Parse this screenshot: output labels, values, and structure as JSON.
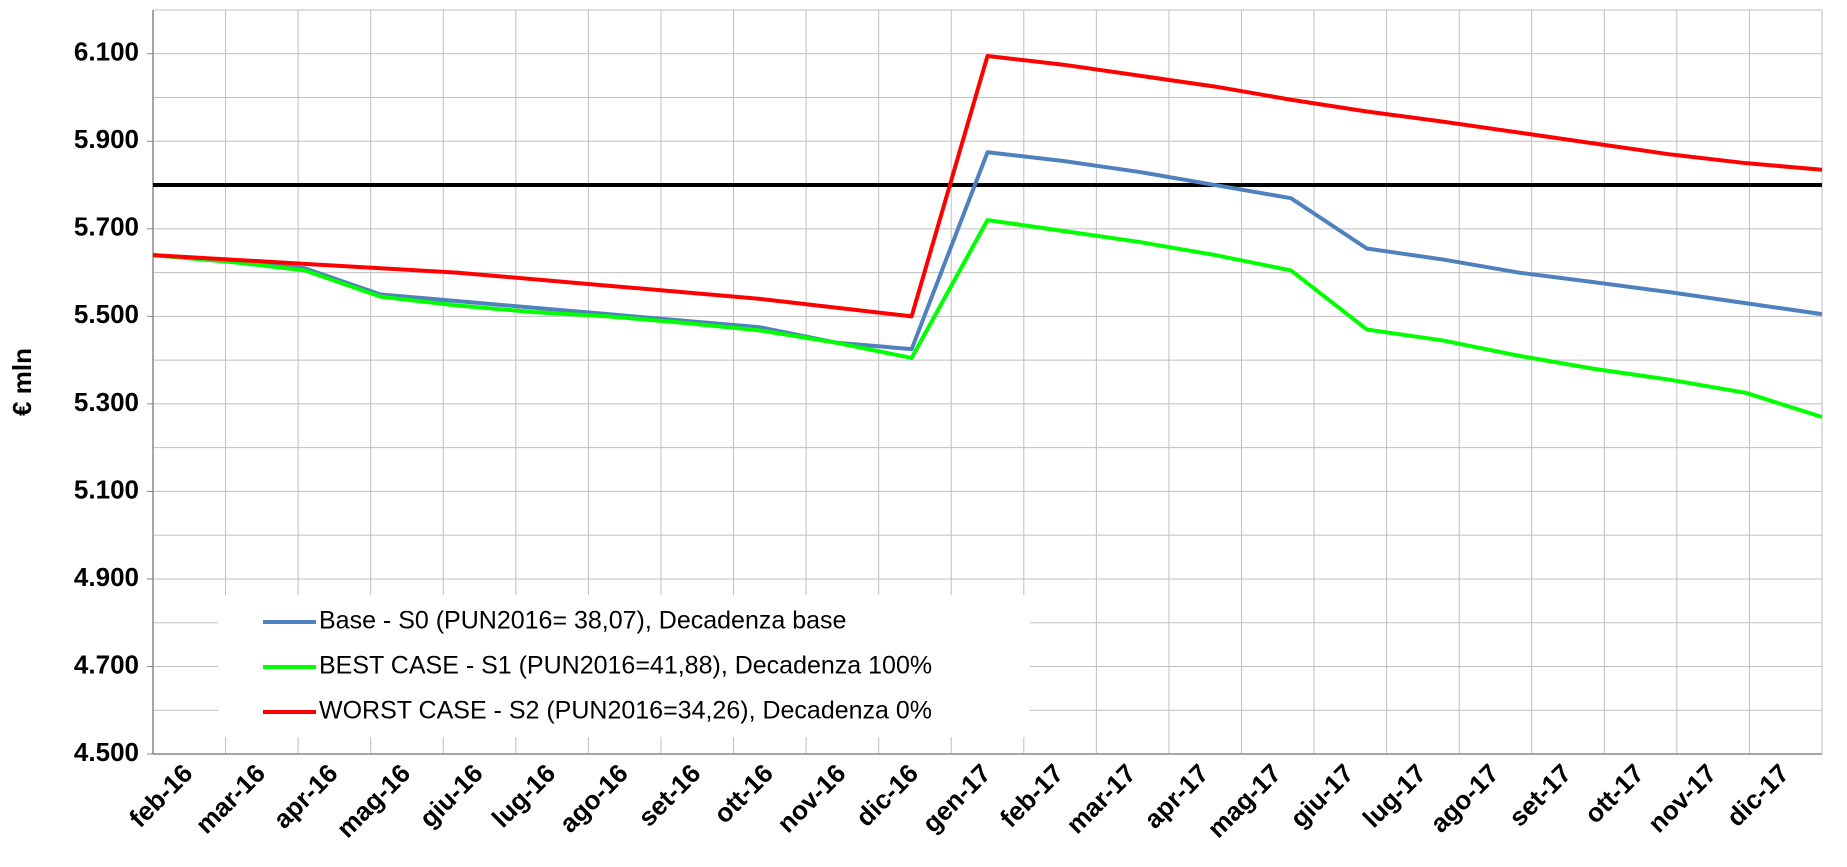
{
  "chart_data": {
    "type": "line",
    "y_label": "€ mln",
    "categories": [
      "feb-16",
      "mar-16",
      "apr-16",
      "mag-16",
      "giu-16",
      "lug-16",
      "ago-16",
      "set-16",
      "ott-16",
      "nov-16",
      "dic-16",
      "gen-17",
      "feb-17",
      "mar-17",
      "apr-17",
      "mag-17",
      "giu-17",
      "lug-17",
      "ago-17",
      "set-17",
      "ott-17",
      "nov-17",
      "dic-17"
    ],
    "series": [
      {
        "name": "Base - S0 (PUN2016= 38,07), Decadenza base",
        "color": "#4f81bd",
        "values": [
          5640,
          5625,
          5610,
          5550,
          5535,
          5520,
          5505,
          5490,
          5475,
          5440,
          5425,
          5875,
          5855,
          5830,
          5800,
          5770,
          5655,
          5630,
          5600,
          5578,
          5555,
          5530,
          5505
        ]
      },
      {
        "name": "BEST CASE - S1 (PUN2016=41,88), Decadenza 100%",
        "color": "#00ff00",
        "values": [
          5640,
          5625,
          5605,
          5545,
          5525,
          5510,
          5500,
          5485,
          5468,
          5440,
          5405,
          5720,
          5695,
          5670,
          5640,
          5605,
          5470,
          5445,
          5410,
          5380,
          5355,
          5325,
          5270
        ]
      },
      {
        "name": "WORST CASE - S2 (PUN2016=34,26), Decadenza 0%",
        "color": "#ff0000",
        "values": [
          5640,
          5630,
          5620,
          5610,
          5600,
          5585,
          5570,
          5555,
          5540,
          5520,
          5500,
          6095,
          6075,
          6050,
          6025,
          5995,
          5968,
          5945,
          5920,
          5895,
          5870,
          5850,
          5835
        ]
      }
    ],
    "reference_line": {
      "value": 5800,
      "color": "#000000"
    },
    "ylim": [
      4500,
      6200
    ],
    "yticks": [
      {
        "value": 4500,
        "label": "4.500"
      },
      {
        "value": 4700,
        "label": "4.700"
      },
      {
        "value": 4900,
        "label": "4.900"
      },
      {
        "value": 5100,
        "label": "5.100"
      },
      {
        "value": 5300,
        "label": "5.300"
      },
      {
        "value": 5500,
        "label": "5.500"
      },
      {
        "value": 5700,
        "label": "5.700"
      },
      {
        "value": 5900,
        "label": "5.900"
      },
      {
        "value": 6100,
        "label": "6.100"
      }
    ],
    "grid": true
  }
}
